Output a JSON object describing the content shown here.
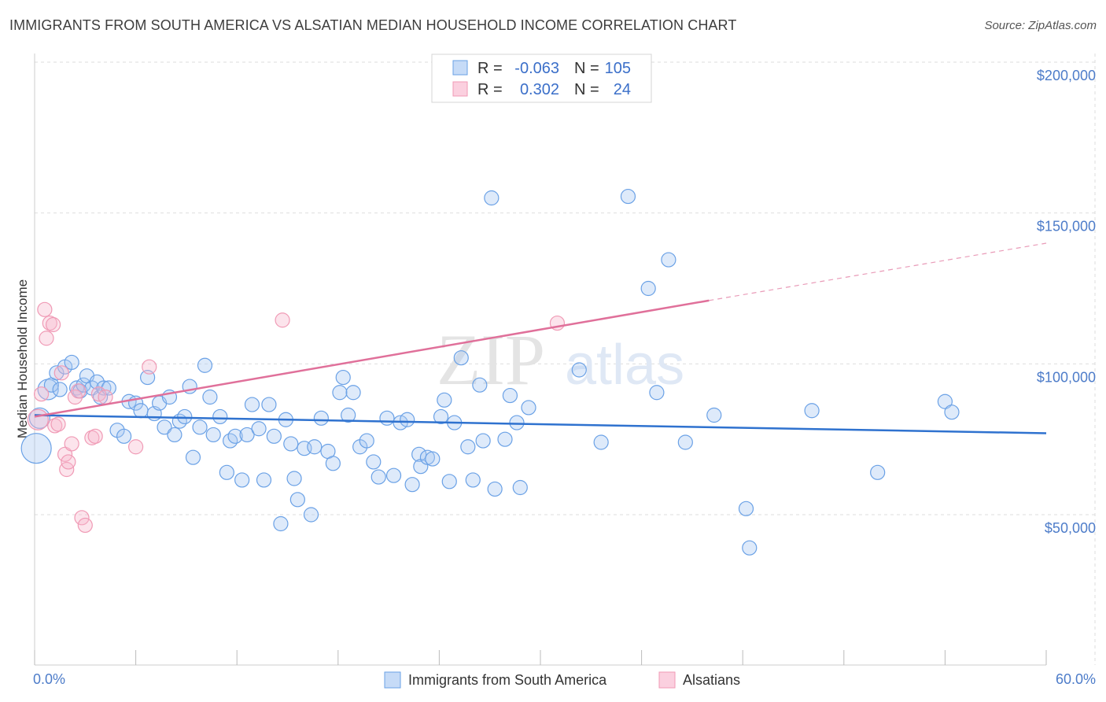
{
  "title": "IMMIGRANTS FROM SOUTH AMERICA VS ALSATIAN MEDIAN HOUSEHOLD INCOME CORRELATION CHART",
  "source": "Source: ZipAtlas.com",
  "watermark": {
    "zip": "ZIP",
    "atlas": "atlas"
  },
  "colors": {
    "blue": "#6aa1e6",
    "blue_line": "#2f72cf",
    "pink": "#f09ab5",
    "pink_line": "#e0709a",
    "axis_label": "#4d7cc9"
  },
  "legend": {
    "rows": [
      {
        "r_label": "R =",
        "r_value": "-0.063",
        "n_label": "N =",
        "n_value": "105"
      },
      {
        "r_label": "R =",
        "r_value": "0.302",
        "n_label": "N =",
        "n_value": "24"
      }
    ]
  },
  "chart_data": {
    "type": "scatter",
    "title": "IMMIGRANTS FROM SOUTH AMERICA VS ALSATIAN MEDIAN HOUSEHOLD INCOME CORRELATION CHART",
    "xlabel": "",
    "ylabel": "Median Household Income",
    "xlim": [
      0,
      60
    ],
    "ylim": [
      5000,
      210000
    ],
    "x_tick_labels": [
      "0.0%",
      "60.0%"
    ],
    "y_ticks": [
      50000,
      100000,
      150000,
      200000
    ],
    "y_tick_labels": [
      "$50,000",
      "$100,000",
      "$150,000",
      "$200,000"
    ],
    "grid": true,
    "series": [
      {
        "name": "Immigrants from South America",
        "color": "#6aa1e6",
        "trend": {
          "x": [
            0,
            60
          ],
          "y": [
            83000,
            77000
          ]
        },
        "points": [
          [
            0.1,
            72000,
            3
          ],
          [
            0.3,
            82000,
            2
          ],
          [
            0.8,
            91500,
            2
          ],
          [
            1.0,
            93000,
            1
          ],
          [
            1.3,
            97000,
            1
          ],
          [
            1.5,
            91500,
            1
          ],
          [
            1.8,
            99000,
            1
          ],
          [
            2.2,
            100500,
            1
          ],
          [
            2.5,
            92000,
            1
          ],
          [
            2.7,
            91000,
            1
          ],
          [
            2.9,
            93000,
            1
          ],
          [
            3.1,
            96000,
            1
          ],
          [
            3.4,
            92000,
            1
          ],
          [
            3.7,
            94000,
            1
          ],
          [
            3.9,
            89000,
            1
          ],
          [
            4.1,
            92000,
            1
          ],
          [
            4.4,
            92000,
            1
          ],
          [
            4.9,
            78000,
            1
          ],
          [
            5.3,
            76000,
            1
          ],
          [
            5.6,
            87500,
            1
          ],
          [
            6.0,
            87000,
            1
          ],
          [
            6.3,
            84500,
            1
          ],
          [
            6.7,
            95500,
            1
          ],
          [
            7.1,
            83500,
            1
          ],
          [
            7.4,
            87000,
            1
          ],
          [
            7.7,
            79000,
            1
          ],
          [
            8.0,
            89000,
            1
          ],
          [
            8.3,
            76500,
            1
          ],
          [
            8.6,
            81000,
            1
          ],
          [
            8.9,
            82500,
            1
          ],
          [
            9.2,
            92500,
            1
          ],
          [
            9.4,
            69000,
            1
          ],
          [
            9.8,
            79000,
            1
          ],
          [
            10.1,
            99500,
            1
          ],
          [
            10.4,
            89000,
            1
          ],
          [
            10.6,
            76500,
            1
          ],
          [
            11.0,
            82500,
            1
          ],
          [
            11.4,
            64000,
            1
          ],
          [
            11.6,
            74500,
            1
          ],
          [
            11.9,
            76000,
            1
          ],
          [
            12.3,
            61500,
            1
          ],
          [
            12.6,
            76500,
            1
          ],
          [
            12.9,
            86500,
            1
          ],
          [
            13.3,
            78500,
            1
          ],
          [
            13.6,
            61500,
            1
          ],
          [
            13.9,
            86500,
            1
          ],
          [
            14.2,
            76000,
            1
          ],
          [
            14.6,
            47000,
            1
          ],
          [
            14.9,
            81500,
            1
          ],
          [
            15.2,
            73500,
            1
          ],
          [
            15.4,
            62000,
            1
          ],
          [
            15.6,
            55000,
            1
          ],
          [
            16.0,
            72000,
            1
          ],
          [
            16.4,
            50000,
            1
          ],
          [
            16.6,
            72500,
            1
          ],
          [
            17.0,
            82000,
            1
          ],
          [
            17.4,
            71000,
            1
          ],
          [
            17.7,
            67000,
            1
          ],
          [
            18.1,
            90500,
            1
          ],
          [
            18.3,
            95500,
            1
          ],
          [
            18.6,
            83000,
            1
          ],
          [
            18.9,
            90500,
            1
          ],
          [
            19.3,
            72500,
            1
          ],
          [
            19.7,
            74500,
            1
          ],
          [
            20.1,
            67500,
            1
          ],
          [
            20.4,
            62500,
            1
          ],
          [
            20.9,
            82000,
            1
          ],
          [
            21.3,
            63000,
            1
          ],
          [
            21.7,
            80500,
            1
          ],
          [
            22.1,
            81500,
            1
          ],
          [
            22.4,
            60000,
            1
          ],
          [
            22.8,
            70000,
            1
          ],
          [
            22.9,
            66000,
            1
          ],
          [
            23.3,
            69000,
            1
          ],
          [
            23.6,
            68500,
            1
          ],
          [
            24.1,
            82500,
            1
          ],
          [
            24.3,
            88000,
            1
          ],
          [
            24.6,
            61000,
            1
          ],
          [
            24.9,
            80500,
            1
          ],
          [
            25.3,
            102000,
            1
          ],
          [
            25.7,
            72500,
            1
          ],
          [
            26.0,
            61500,
            1
          ],
          [
            26.4,
            93000,
            1
          ],
          [
            26.6,
            74500,
            1
          ],
          [
            27.1,
            155000,
            1
          ],
          [
            27.3,
            58500,
            1
          ],
          [
            27.9,
            75000,
            1
          ],
          [
            28.2,
            89500,
            1
          ],
          [
            28.6,
            80500,
            1
          ],
          [
            28.8,
            59000,
            1
          ],
          [
            29.3,
            85500,
            1
          ],
          [
            32.3,
            98000,
            1
          ],
          [
            33.6,
            74000,
            1
          ],
          [
            35.2,
            155500,
            1
          ],
          [
            36.4,
            125000,
            1
          ],
          [
            36.9,
            90500,
            1
          ],
          [
            37.6,
            134500,
            1
          ],
          [
            38.6,
            74000,
            1
          ],
          [
            40.3,
            83000,
            1
          ],
          [
            42.2,
            52000,
            1
          ],
          [
            42.4,
            39000,
            1
          ],
          [
            46.1,
            84500,
            1
          ],
          [
            50.0,
            64000,
            1
          ],
          [
            54.0,
            87500,
            1
          ],
          [
            54.4,
            84000,
            1
          ]
        ]
      },
      {
        "name": "Alsatians",
        "color": "#f09ab5",
        "trend": {
          "x": [
            0,
            40
          ],
          "y": [
            82500,
            121000
          ]
        },
        "trend_dashed": {
          "x": [
            40,
            60
          ],
          "y": [
            121000,
            140000
          ]
        },
        "points": [
          [
            0.2,
            81500,
            2
          ],
          [
            0.4,
            90000,
            1
          ],
          [
            0.6,
            118000,
            1
          ],
          [
            0.7,
            108500,
            1
          ],
          [
            0.9,
            113500,
            1
          ],
          [
            1.1,
            113000,
            1
          ],
          [
            1.2,
            79500,
            1
          ],
          [
            1.4,
            80000,
            1
          ],
          [
            1.6,
            97000,
            1
          ],
          [
            1.8,
            70000,
            1
          ],
          [
            1.9,
            65000,
            1
          ],
          [
            2.0,
            67500,
            1
          ],
          [
            2.2,
            73500,
            1
          ],
          [
            2.4,
            89000,
            1
          ],
          [
            2.6,
            91000,
            1
          ],
          [
            2.8,
            49000,
            1
          ],
          [
            3.0,
            46500,
            1
          ],
          [
            3.4,
            75500,
            1
          ],
          [
            3.6,
            76000,
            1
          ],
          [
            3.8,
            90000,
            1
          ],
          [
            4.2,
            89000,
            1
          ],
          [
            6.0,
            72500,
            1
          ],
          [
            6.8,
            99000,
            1
          ],
          [
            14.7,
            114500,
            1
          ],
          [
            31.0,
            113500,
            1
          ]
        ]
      }
    ],
    "bottom_legend": [
      "Immigrants from South America",
      "Alsatians"
    ]
  }
}
